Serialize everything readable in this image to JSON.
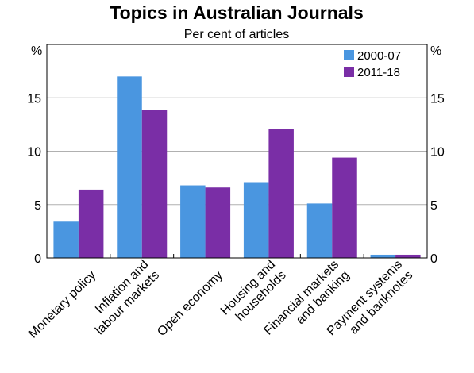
{
  "chart_data": {
    "type": "bar",
    "title": "Topics in Australian Journals",
    "subtitle": "Per cent of articles",
    "ylabel_left": "%",
    "ylabel_right": "%",
    "ylim": [
      0,
      20
    ],
    "yticks": [
      0,
      5,
      10,
      15
    ],
    "grid": true,
    "legend_position": "top-right",
    "categories": [
      [
        "Monetary policy"
      ],
      [
        "Inflation and",
        "labour markets"
      ],
      [
        "Open economy"
      ],
      [
        "Housing and",
        "households"
      ],
      [
        "Financial markets",
        "and banking"
      ],
      [
        "Payment systems",
        "and banknotes"
      ]
    ],
    "series": [
      {
        "name": "2000-07",
        "color": "#4a96e0",
        "values": [
          3.4,
          17.0,
          6.8,
          7.1,
          5.1,
          0.3
        ]
      },
      {
        "name": "2011-18",
        "color": "#7a2ea6",
        "values": [
          6.4,
          13.9,
          6.6,
          12.1,
          9.4,
          0.3
        ]
      }
    ]
  }
}
